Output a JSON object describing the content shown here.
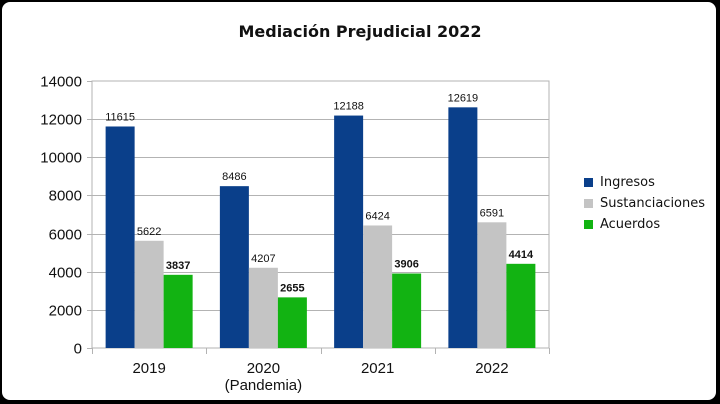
{
  "chart_data": {
    "type": "bar",
    "title": "Mediación Prejudicial 2022",
    "categories": [
      "2019",
      "2020",
      "2021",
      "2022"
    ],
    "category_sublabels": [
      "",
      "(Pandemia)",
      "",
      ""
    ],
    "xlabel": "",
    "ylabel": "",
    "ylim": [
      0,
      14000
    ],
    "yticks": [
      0,
      2000,
      4000,
      6000,
      8000,
      10000,
      12000,
      14000
    ],
    "grid": true,
    "legend_position": "right",
    "series": [
      {
        "name": "Ingresos",
        "color": "#0a3f8a",
        "values": [
          11615,
          8486,
          12188,
          12619
        ],
        "label_bold": false
      },
      {
        "name": "Sustanciaciones",
        "color": "#c4c4c4",
        "values": [
          5622,
          4207,
          6424,
          6591
        ],
        "label_bold": false
      },
      {
        "name": "Acuerdos",
        "color": "#12b312",
        "values": [
          3837,
          2655,
          3906,
          4414
        ],
        "label_bold": true
      }
    ]
  }
}
